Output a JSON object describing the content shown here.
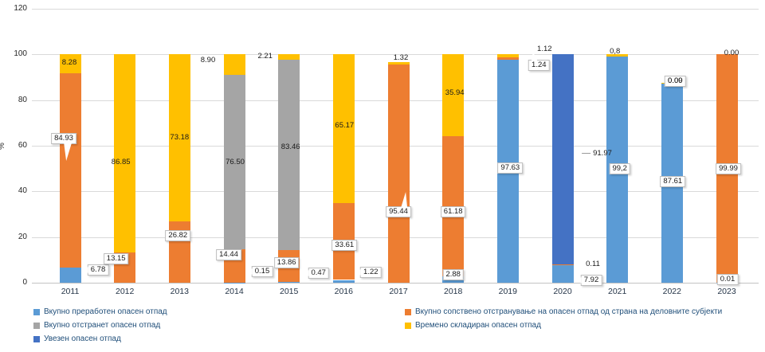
{
  "y_axis": {
    "label": "%",
    "ticks": [
      0,
      20,
      40,
      60,
      80,
      100,
      120
    ]
  },
  "colors": {
    "blue": "#5B9BD5",
    "orange": "#ED7D31",
    "gray": "#A5A5A5",
    "yellow": "#FFC000",
    "darkblue": "#4472C4",
    "gridline": "#d9d9d9",
    "legend_text": "#1f4e79"
  },
  "legend": {
    "items": [
      {
        "label": "Вкупно преработен опасен отпад",
        "color": "#5B9BD5"
      },
      {
        "label": "Вкупно сопствено отстранување на опасен отпад од страна на деловните субјекти",
        "color": "#ED7D31"
      },
      {
        "label": "Вкупно отстранет опасен отпад",
        "color": "#A5A5A5"
      },
      {
        "label": "Времено складиран опасен отпад",
        "color": "#FFC000"
      },
      {
        "label": "Увезен опасен отпад",
        "color": "#4472C4"
      }
    ]
  },
  "chart_data": {
    "type": "bar",
    "stacked": true,
    "title": "",
    "xlabel": "",
    "ylabel": "%",
    "ylim": [
      0,
      120
    ],
    "grid": true,
    "legend_position": "bottom",
    "categories": [
      "2011",
      "2012",
      "2013",
      "2014",
      "2015",
      "2016",
      "2017",
      "2018",
      "2019",
      "2020",
      "2021",
      "2022",
      "2023"
    ],
    "series": [
      {
        "name": "Вкупно преработен опасен отпад",
        "color": "#5B9BD5",
        "values": [
          6.78,
          0,
          0,
          0.15,
          0.47,
          1.22,
          0,
          2.88,
          97.63,
          7.92,
          99.2,
          87.61,
          0.01
        ]
      },
      {
        "name": "Вкупно сопствено отстранување на опасен отпад од страна на деловните субјекти",
        "color": "#ED7D31",
        "values": [
          84.93,
          13.15,
          26.82,
          14.44,
          13.86,
          33.61,
          95.44,
          61.18,
          1.24,
          0.11,
          0,
          0,
          99.99
        ]
      },
      {
        "name": "Вкупно отстранет опасен отпад",
        "color": "#A5A5A5",
        "values": [
          0,
          0,
          0,
          76.5,
          83.46,
          0,
          0,
          0,
          0,
          0,
          0,
          0,
          0
        ]
      },
      {
        "name": "Времено складиран опасен отпад",
        "color": "#FFC000",
        "values": [
          8.28,
          86.85,
          73.18,
          8.9,
          2.21,
          65.17,
          1.32,
          35.94,
          1.12,
          0,
          0.8,
          0.09,
          0
        ]
      },
      {
        "name": "Увезен опасен отпад",
        "color": "#4472C4",
        "values": [
          0,
          0,
          0,
          0,
          0,
          0,
          0,
          0,
          0,
          91.97,
          0,
          0,
          0
        ]
      }
    ],
    "labels": [
      {
        "cat": 0,
        "text": "8.28",
        "y": 96.2,
        "dx": -1,
        "style": "plain"
      },
      {
        "cat": 0,
        "text": "84.93",
        "y": 63.3,
        "dx": -8,
        "style": "box",
        "pointer": "down"
      },
      {
        "cat": 0,
        "text": "6.78",
        "y": 5.6,
        "dx": 35,
        "style": "box",
        "pointer": "left"
      },
      {
        "cat": 1,
        "text": "86.85",
        "y": 52.7,
        "dx": -5,
        "style": "plain"
      },
      {
        "cat": 1,
        "text": "13.15",
        "y": 10.4,
        "dx": -11,
        "style": "box"
      },
      {
        "cat": 2,
        "text": "73.18",
        "y": 63.5,
        "dx": 0,
        "style": "plain"
      },
      {
        "cat": 2,
        "text": "26.82",
        "y": 20.6,
        "dx": -2,
        "style": "box"
      },
      {
        "cat": 3,
        "text": "8.90",
        "y": 97.2,
        "dx": -33,
        "style": "plain"
      },
      {
        "cat": 3,
        "text": "76.50",
        "y": 52.7,
        "dx": 1,
        "style": "plain"
      },
      {
        "cat": 3,
        "text": "14.44",
        "y": 12.2,
        "dx": -7,
        "style": "box"
      },
      {
        "cat": 3,
        "text": "0.15",
        "y": 4.9,
        "dx": 35,
        "style": "box",
        "pointer": "left"
      },
      {
        "cat": 4,
        "text": "2.21",
        "y": 99.2,
        "dx": -30,
        "style": "plain"
      },
      {
        "cat": 4,
        "text": "83.46",
        "y": 59.3,
        "dx": 2,
        "style": "plain"
      },
      {
        "cat": 4,
        "text": "13.86",
        "y": 8.7,
        "dx": -3,
        "style": "box"
      },
      {
        "cat": 4,
        "text": "0.47",
        "y": 4.2,
        "dx": 37,
        "style": "box",
        "pointer": "left"
      },
      {
        "cat": 5,
        "text": "65.17",
        "y": 68.7,
        "dx": 1,
        "style": "plain"
      },
      {
        "cat": 5,
        "text": "33.61",
        "y": 16.4,
        "dx": 1,
        "style": "box"
      },
      {
        "cat": 5,
        "text": "1.22",
        "y": 4.5,
        "dx": 34,
        "style": "box",
        "pointer": "left"
      },
      {
        "cat": 6,
        "text": "1.32",
        "y": 98.4,
        "dx": 3,
        "style": "plain"
      },
      {
        "cat": 6,
        "text": "95.44",
        "y": 31.0,
        "dx": 0,
        "style": "box",
        "pointer": "up"
      },
      {
        "cat": 7,
        "text": "35.94",
        "y": 83.0,
        "dx": 2,
        "style": "plain"
      },
      {
        "cat": 7,
        "text": "61.18",
        "y": 31.0,
        "dx": 0,
        "style": "box"
      },
      {
        "cat": 7,
        "text": "2.88",
        "y": 3.5,
        "dx": 0,
        "style": "box"
      },
      {
        "cat": 8,
        "text": "1.12",
        "y": 102.2,
        "dx": 46,
        "style": "plain"
      },
      {
        "cat": 8,
        "text": "1.24",
        "y": 95.2,
        "dx": 39,
        "style": "box",
        "pointer": "upleft"
      },
      {
        "cat": 8,
        "text": "97.63",
        "y": 50.2,
        "dx": 3,
        "style": "box"
      },
      {
        "cat": 9,
        "text": "91.97",
        "y": 56.4,
        "dx": 43,
        "style": "leader"
      },
      {
        "cat": 9,
        "text": "0.11",
        "y": 8.0,
        "dx": 38,
        "style": "plain"
      },
      {
        "cat": 9,
        "text": "7.92",
        "y": 1.2,
        "dx": 36,
        "style": "box",
        "pointer": "left"
      },
      {
        "cat": 10,
        "text": "0,8",
        "y": 101.3,
        "dx": -3,
        "style": "plain"
      },
      {
        "cat": 10,
        "text": "99,2",
        "y": 49.9,
        "dx": 3,
        "style": "box"
      },
      {
        "cat": 11,
        "text": "0.09",
        "y": 88.2,
        "dx": 4,
        "style": "box"
      },
      {
        "cat": 11,
        "text": "0.00",
        "y": 88.4,
        "dx": 4,
        "style": "plain"
      },
      {
        "cat": 11,
        "text": "87.61",
        "y": 44.3,
        "dx": 1,
        "style": "box"
      },
      {
        "cat": 12,
        "text": "0.00",
        "y": 100.5,
        "dx": 6,
        "style": "plain"
      },
      {
        "cat": 12,
        "text": "99.99",
        "y": 49.9,
        "dx": 2,
        "style": "box"
      },
      {
        "cat": 12,
        "text": "0.01",
        "y": 1.4,
        "dx": 1,
        "style": "box"
      }
    ]
  }
}
